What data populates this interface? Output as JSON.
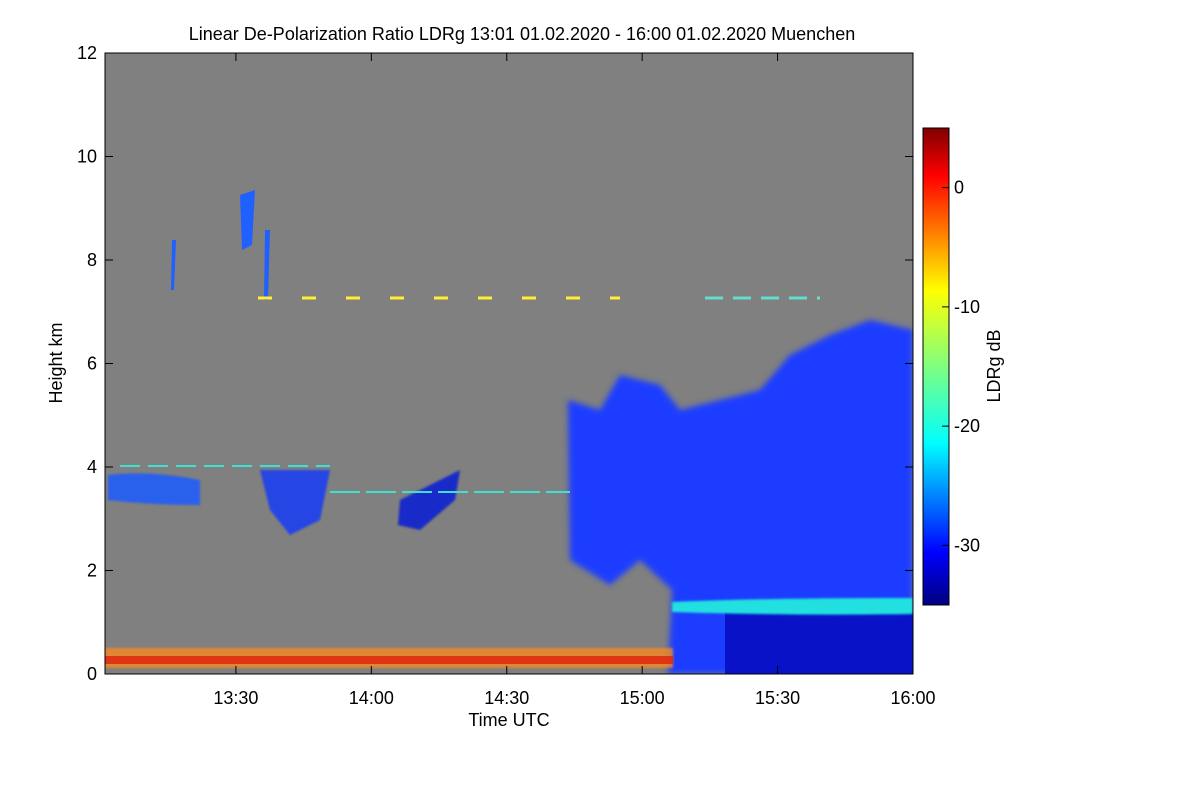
{
  "chart_data": {
    "type": "heatmap",
    "title": "Linear De-Polarization Ratio LDRg   13:01 01.02.2020 - 16:00 01.02.2020 Muenchen",
    "xlabel": "Time UTC",
    "ylabel": "Height km",
    "xlim": [
      "13:01",
      "16:00"
    ],
    "ylim": [
      0,
      12
    ],
    "x_ticks": [
      "13:30",
      "14:00",
      "14:30",
      "15:00",
      "15:30",
      "16:00"
    ],
    "y_ticks": [
      0,
      2,
      4,
      6,
      8,
      10,
      12
    ],
    "colorbar": {
      "label": "LDRg dB",
      "range": [
        -35,
        5
      ],
      "ticks": [
        0,
        -10,
        -20,
        -30
      ],
      "colormap": [
        "#00007f",
        "#0000ff",
        "#007fff",
        "#00ffff",
        "#7fff7f",
        "#ffff00",
        "#ff7f00",
        "#ff0000",
        "#7f0000"
      ]
    },
    "background_color": "#808080",
    "features": [
      {
        "region": "thick cloud base 14:45-16:00",
        "height_km": [
          0,
          6.5
        ],
        "ldrg_db": -32
      },
      {
        "region": "melting layer band 15:10-16:00",
        "height_km": [
          1.2,
          1.5
        ],
        "ldrg_db": -22
      },
      {
        "region": "near-surface aerosol 13:01-15:10",
        "height_km": [
          0,
          0.5
        ],
        "ldrg_db": -5
      },
      {
        "region": "cirrus fragments 13:01-14:25",
        "height_km": [
          2.8,
          4.2
        ],
        "ldrg_db": -28
      },
      {
        "region": "high cirrus streaks 13:10-13:50",
        "height_km": [
          7.2,
          9.6
        ],
        "ldrg_db": -28
      }
    ]
  }
}
